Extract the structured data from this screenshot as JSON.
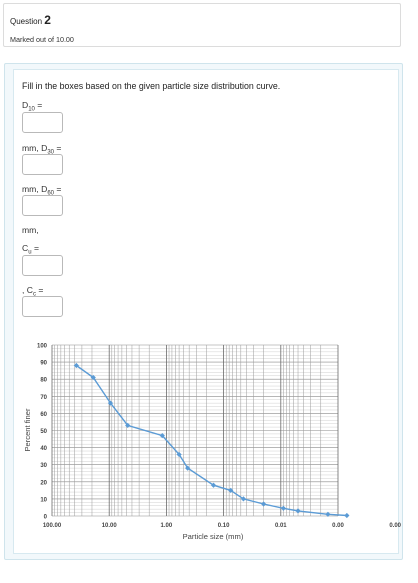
{
  "question_info": {
    "label": "Question",
    "number": "2",
    "marks": "Marked out of 10.00"
  },
  "question": {
    "text": "Fill in the boxes based on the given particle size distribution curve.",
    "labels": {
      "d10_pre": "D",
      "d10_sub": "10",
      "d10_post": " =",
      "d30_pre": "mm, D",
      "d30_sub": "30",
      "d30_post": " =",
      "d60_pre": "mm, D",
      "d60_sub": "60",
      "d60_post": " =",
      "mm": "mm,",
      "cu_pre": "C",
      "cu_sub": "u",
      "cu_post": " =",
      "cc_pre": ", C",
      "cc_sub": "c",
      "cc_post": " ="
    },
    "inputs": {
      "d10": "",
      "d30": "",
      "d60": "",
      "cu": "",
      "cc": ""
    }
  },
  "chart_data": {
    "type": "line",
    "xlabel": "Particle size (mm)",
    "ylabel": "Percent finer",
    "x_scale": "log",
    "x_reversed": true,
    "xlim": [
      100,
      0.001
    ],
    "ylim": [
      0,
      100
    ],
    "x_tick_labels": [
      "100.00",
      "10.00",
      "1.00",
      "0.10",
      "0.01",
      "0.00",
      "0.00"
    ],
    "y_ticks": [
      0,
      10,
      20,
      30,
      40,
      50,
      60,
      70,
      80,
      90,
      100
    ],
    "grid": true,
    "series": [
      {
        "color": "#5b9bd5",
        "x": [
          37.5,
          19,
          9.5,
          4.75,
          1.18,
          0.6,
          0.425,
          0.15,
          0.075,
          0.045,
          0.02,
          0.009,
          0.005,
          0.0015,
          0.0007
        ],
        "y": [
          88,
          81,
          66,
          53,
          47,
          36,
          28,
          18,
          15,
          10,
          7,
          4.5,
          3,
          1,
          0.3
        ]
      }
    ]
  }
}
